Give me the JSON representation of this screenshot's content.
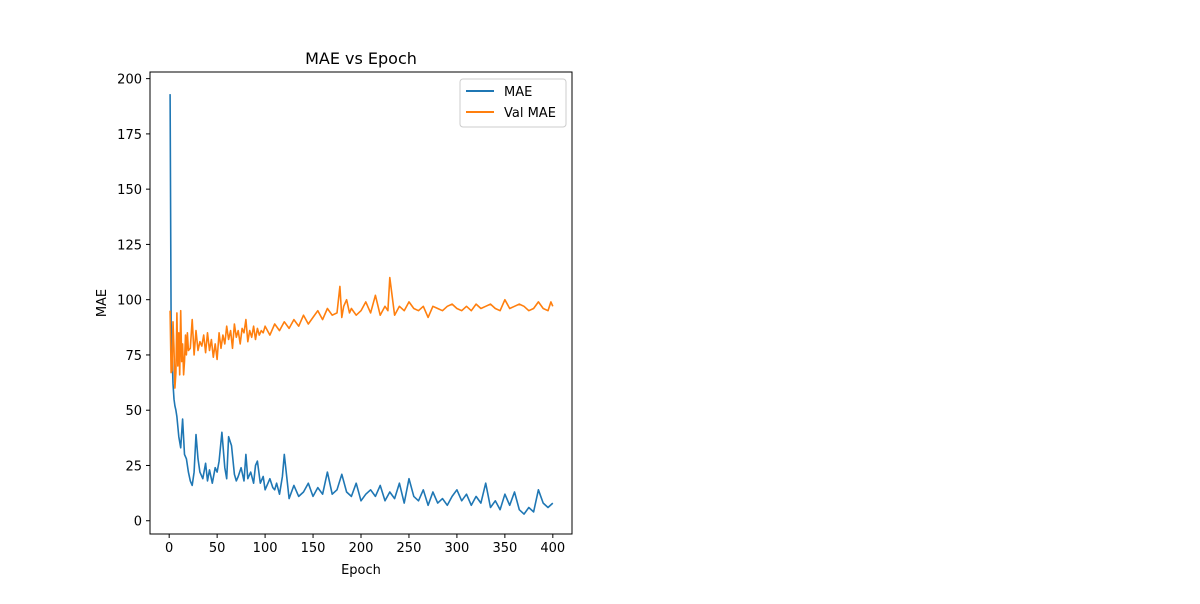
{
  "chart_data": {
    "type": "line",
    "title": "MAE vs Epoch",
    "xlabel": "Epoch",
    "ylabel": "MAE",
    "xlim": [
      -20,
      420
    ],
    "ylim": [
      -6,
      203
    ],
    "xticks": [
      0,
      50,
      100,
      150,
      200,
      250,
      300,
      350,
      400
    ],
    "yticks": [
      0,
      25,
      50,
      75,
      100,
      125,
      150,
      175,
      200
    ],
    "grid": false,
    "legend_position": "upper right",
    "series": [
      {
        "name": "MAE",
        "color": "#1f77b4",
        "x": [
          1,
          2,
          3,
          4,
          5,
          6,
          7,
          8,
          10,
          12,
          14,
          16,
          18,
          20,
          22,
          24,
          26,
          28,
          30,
          32,
          35,
          38,
          40,
          42,
          45,
          48,
          50,
          52,
          55,
          58,
          60,
          62,
          65,
          68,
          70,
          72,
          75,
          78,
          80,
          82,
          85,
          88,
          90,
          92,
          95,
          98,
          100,
          102,
          105,
          108,
          110,
          112,
          115,
          118,
          120,
          125,
          130,
          135,
          140,
          145,
          150,
          155,
          160,
          165,
          170,
          175,
          180,
          185,
          190,
          195,
          200,
          205,
          210,
          215,
          220,
          225,
          230,
          235,
          240,
          245,
          250,
          255,
          260,
          265,
          270,
          275,
          280,
          285,
          290,
          295,
          300,
          305,
          310,
          315,
          320,
          325,
          330,
          335,
          340,
          345,
          350,
          355,
          360,
          365,
          370,
          375,
          380,
          385,
          390,
          395,
          400
        ],
        "y": [
          193,
          90,
          75,
          62,
          55,
          52,
          50,
          47,
          38,
          33,
          46,
          30,
          28,
          22,
          18,
          16,
          22,
          39,
          28,
          22,
          19,
          26,
          18,
          23,
          17,
          24,
          22,
          27,
          40,
          24,
          19,
          38,
          34,
          21,
          18,
          20,
          24,
          18,
          30,
          19,
          22,
          17,
          25,
          27,
          17,
          20,
          14,
          16,
          19,
          15,
          14,
          17,
          12,
          20,
          30,
          10,
          16,
          11,
          13,
          17,
          11,
          15,
          12,
          22,
          12,
          14,
          21,
          13,
          11,
          17,
          9,
          12,
          14,
          11,
          16,
          9,
          13,
          10,
          17,
          8,
          19,
          11,
          9,
          14,
          7,
          13,
          8,
          10,
          7,
          11,
          14,
          9,
          12,
          7,
          11,
          8,
          17,
          6,
          9,
          5,
          12,
          7,
          13,
          5,
          3,
          6,
          4,
          14,
          8,
          6,
          8
        ]
      },
      {
        "name": "Val MAE",
        "color": "#ff7f0e",
        "x": [
          1,
          2,
          3,
          4,
          5,
          6,
          7,
          8,
          9,
          10,
          11,
          12,
          13,
          14,
          15,
          16,
          17,
          18,
          19,
          20,
          22,
          24,
          26,
          28,
          30,
          32,
          34,
          36,
          38,
          40,
          42,
          44,
          46,
          48,
          50,
          52,
          54,
          56,
          58,
          60,
          62,
          64,
          66,
          68,
          70,
          72,
          74,
          76,
          78,
          80,
          82,
          84,
          86,
          88,
          90,
          92,
          94,
          96,
          98,
          100,
          105,
          110,
          115,
          120,
          125,
          130,
          135,
          140,
          145,
          150,
          155,
          160,
          165,
          170,
          175,
          178,
          180,
          182,
          185,
          188,
          190,
          195,
          200,
          205,
          210,
          215,
          220,
          225,
          228,
          230,
          235,
          240,
          245,
          250,
          255,
          260,
          265,
          270,
          275,
          280,
          285,
          290,
          295,
          300,
          305,
          310,
          315,
          320,
          325,
          330,
          335,
          340,
          345,
          350,
          355,
          360,
          365,
          370,
          375,
          380,
          385,
          390,
          395,
          398,
          400
        ],
        "y": [
          95,
          67,
          68,
          90,
          78,
          60,
          67,
          94,
          70,
          85,
          66,
          95,
          72,
          80,
          66,
          72,
          84,
          75,
          85,
          77,
          78,
          91,
          75,
          86,
          77,
          81,
          79,
          84,
          76,
          85,
          77,
          82,
          74,
          80,
          73,
          85,
          78,
          84,
          80,
          88,
          82,
          86,
          78,
          89,
          83,
          86,
          80,
          87,
          85,
          91,
          81,
          86,
          83,
          88,
          82,
          87,
          84,
          86,
          85,
          88,
          84,
          89,
          86,
          90,
          87,
          91,
          88,
          93,
          89,
          92,
          95,
          91,
          96,
          93,
          94,
          106,
          92,
          97,
          100,
          94,
          96,
          93,
          95,
          99,
          94,
          102,
          93,
          97,
          95,
          110,
          93,
          97,
          95,
          99,
          96,
          95,
          97,
          92,
          97,
          96,
          95,
          97,
          98,
          96,
          95,
          97,
          95,
          98,
          96,
          97,
          98,
          96,
          95,
          100,
          96,
          97,
          98,
          97,
          95,
          96,
          99,
          96,
          95,
          99,
          97
        ]
      }
    ]
  }
}
